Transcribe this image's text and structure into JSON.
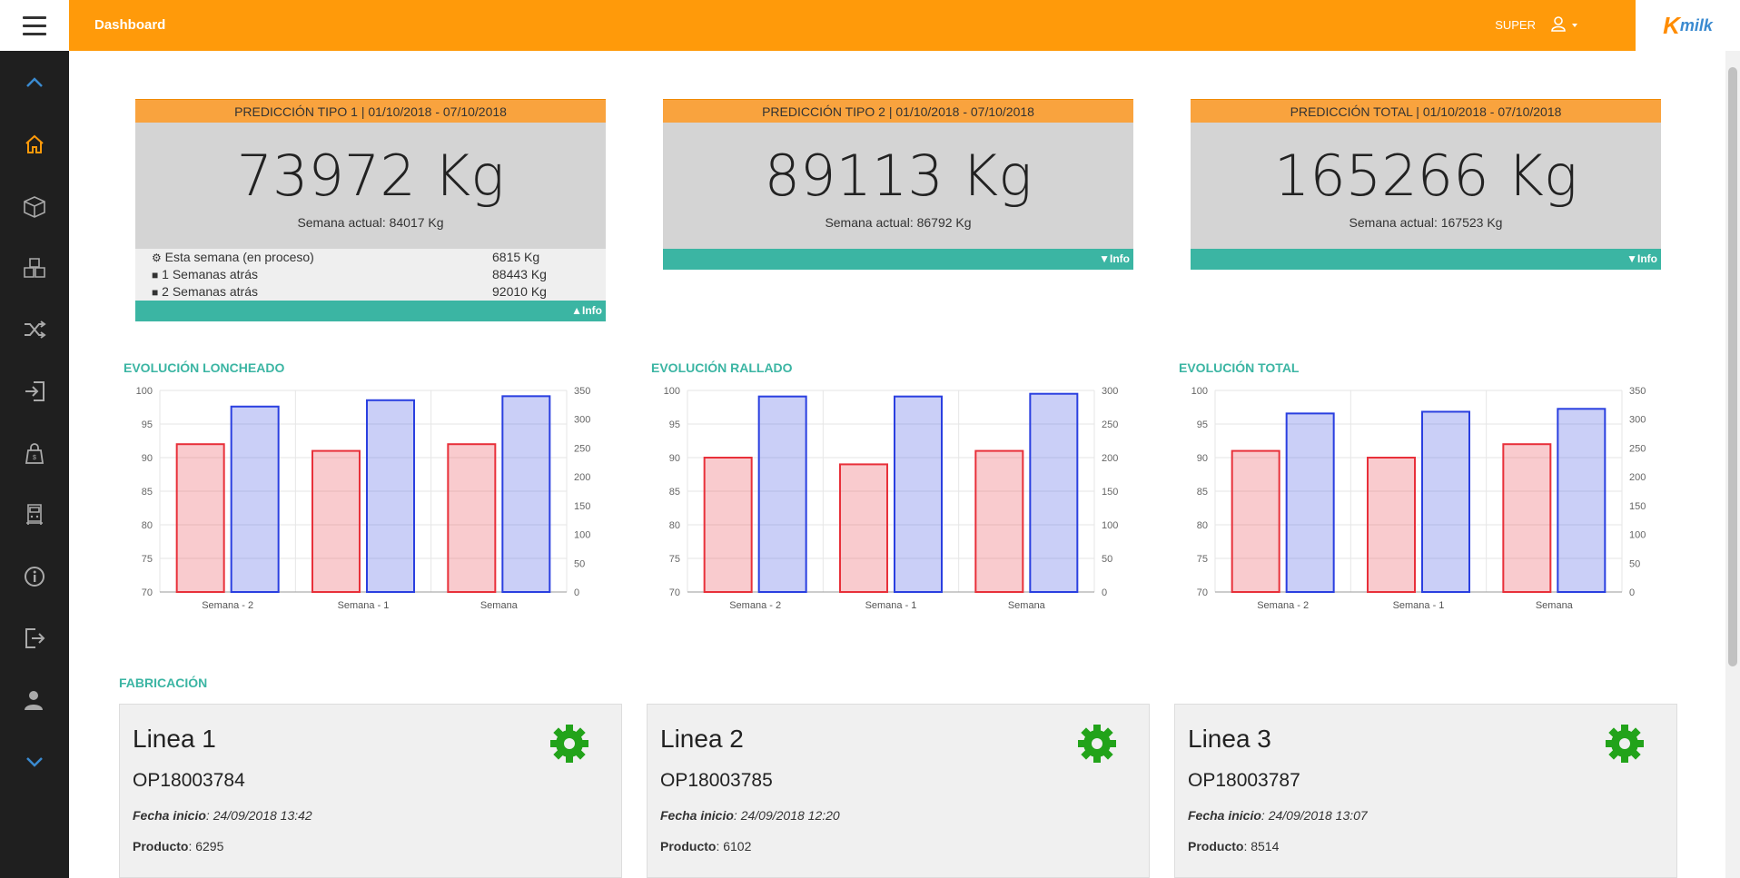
{
  "header": {
    "title": "Dashboard",
    "user": "SUPER",
    "logo_k": "K",
    "logo_milk": "milk"
  },
  "sidebar": {
    "items": [
      "chevron-up",
      "home",
      "box",
      "boxes",
      "shuffle",
      "sign-in",
      "bag",
      "machine",
      "info",
      "sign-out",
      "users",
      "chevron-down"
    ]
  },
  "predictions": [
    {
      "title": "PREDICCIÓN TIPO 1 | 01/10/2018 - 07/10/2018",
      "value": "73972 Kg",
      "current": "Semana actual: 84017 Kg",
      "expanded": true,
      "details": [
        {
          "label": "Esta semana (en proceso)",
          "value": "6815 Kg"
        },
        {
          "label": "1 Semanas atrás",
          "value": "88443 Kg"
        },
        {
          "label": "2 Semanas atrás",
          "value": "92010 Kg"
        }
      ],
      "info": "Info"
    },
    {
      "title": "PREDICCIÓN TIPO 2 | 01/10/2018 - 07/10/2018",
      "value": "89113 Kg",
      "current": "Semana actual: 86792 Kg",
      "expanded": false,
      "info": "Info"
    },
    {
      "title": "PREDICCIÓN TOTAL | 01/10/2018 - 07/10/2018",
      "value": "165266 Kg",
      "current": "Semana actual: 167523 Kg",
      "expanded": false,
      "info": "Info"
    }
  ],
  "chart_data": [
    {
      "type": "bar",
      "title": "EVOLUCIÓN LONCHEADO",
      "categories": [
        "Semana - 2",
        "Semana - 1",
        "Semana"
      ],
      "series": [
        {
          "axis": "left",
          "color": "#e8303a",
          "values": [
            92,
            91,
            92
          ]
        },
        {
          "axis": "right",
          "color": "#2a3fe0",
          "values": [
            322,
            333,
            340
          ]
        }
      ],
      "ylim_left": [
        70,
        100
      ],
      "ylim_right": [
        0,
        350
      ],
      "yticks_left": [
        70,
        75,
        80,
        85,
        90,
        95,
        100
      ],
      "yticks_right": [
        0,
        50,
        100,
        150,
        200,
        250,
        300,
        350
      ]
    },
    {
      "type": "bar",
      "title": "EVOLUCIÓN RALLADO",
      "categories": [
        "Semana - 2",
        "Semana - 1",
        "Semana"
      ],
      "series": [
        {
          "axis": "left",
          "color": "#e8303a",
          "values": [
            90,
            89,
            91
          ]
        },
        {
          "axis": "right",
          "color": "#2a3fe0",
          "values": [
            291,
            291,
            295
          ]
        }
      ],
      "ylim_left": [
        70,
        100
      ],
      "ylim_right": [
        0,
        300
      ],
      "yticks_left": [
        70,
        75,
        80,
        85,
        90,
        95,
        100
      ],
      "yticks_right": [
        0,
        50,
        100,
        150,
        200,
        250,
        300
      ]
    },
    {
      "type": "bar",
      "title": "EVOLUCIÓN TOTAL",
      "categories": [
        "Semana - 2",
        "Semana - 1",
        "Semana"
      ],
      "series": [
        {
          "axis": "left",
          "color": "#e8303a",
          "values": [
            91,
            90,
            92
          ]
        },
        {
          "axis": "right",
          "color": "#2a3fe0",
          "values": [
            310,
            313,
            318
          ]
        }
      ],
      "ylim_left": [
        70,
        100
      ],
      "ylim_right": [
        0,
        350
      ],
      "yticks_left": [
        70,
        75,
        80,
        85,
        90,
        95,
        100
      ],
      "yticks_right": [
        0,
        50,
        100,
        150,
        200,
        250,
        300,
        350
      ]
    }
  ],
  "fabricacion": {
    "title": "FABRICACIÓN",
    "lines": [
      {
        "name": "Linea 1",
        "op": "OP18003784",
        "fecha_label": "Fecha inicio",
        "fecha": ": 24/09/2018 13:42",
        "producto_label": "Producto",
        "producto": ": 6295"
      },
      {
        "name": "Linea 2",
        "op": "OP18003785",
        "fecha_label": "Fecha inicio",
        "fecha": ": 24/09/2018 12:20",
        "producto_label": "Producto",
        "producto": ": 6102"
      },
      {
        "name": "Linea 3",
        "op": "OP18003787",
        "fecha_label": "Fecha inicio",
        "fecha": ": 24/09/2018 13:07",
        "producto_label": "Producto",
        "producto": ": 8514"
      }
    ]
  }
}
